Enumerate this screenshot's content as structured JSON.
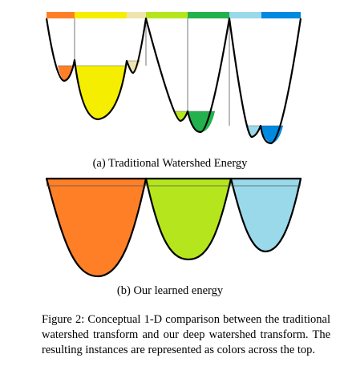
{
  "caption_a": "(a) Traditional Watershed Energy",
  "caption_b": "(b) Our learned energy",
  "figure_caption": "Figure 2: Conceptual 1-D comparison between the traditional watershed transform and our deep watershed transform. The resulting instances are represented as colors across the top.",
  "colors": {
    "orange": "#ff7f27",
    "yellow": "#f5ee00",
    "beige": "#efe4b0",
    "lime": "#b5e61d",
    "green": "#22b14c",
    "light_blue": "#99d9ea",
    "blue": "#0089e0"
  },
  "diagram_a": {
    "instances": [
      "orange",
      "yellow",
      "beige",
      "lime",
      "green",
      "light_blue",
      "blue"
    ],
    "basins": [
      "orange",
      "yellow",
      "beige",
      "lime",
      "green",
      "light_blue",
      "blue"
    ]
  },
  "diagram_b": {
    "instances": [
      "orange",
      "lime",
      "light_blue"
    ],
    "basins": [
      "orange",
      "lime",
      "light_blue"
    ]
  }
}
